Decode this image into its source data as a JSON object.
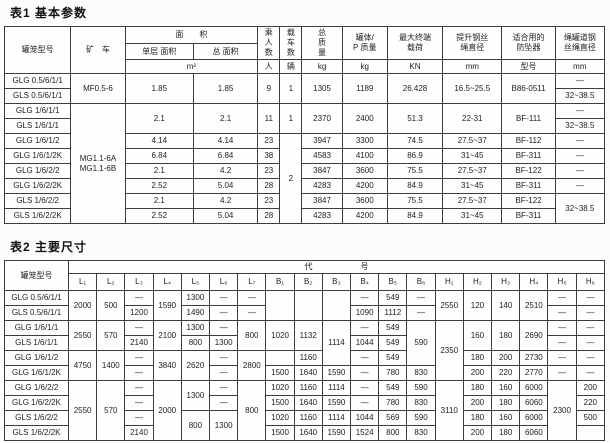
{
  "table1": {
    "title": "表1 基本参数",
    "header": [
      [
        {
          "t": "罐笼型号",
          "rs": 3
        },
        {
          "t": "矿　车",
          "rs": 3
        },
        {
          "t": "面　　积",
          "cs": 2
        },
        {
          "t": "乘\n人\n数",
          "rs": 2
        },
        {
          "t": "载\n车\n数",
          "rs": 2
        },
        {
          "t": "总\n质\n量",
          "rs": 2
        },
        {
          "t": "罐体/\nP 质量",
          "rs": 2
        },
        {
          "t": "最大终端\n载荷",
          "rs": 2
        },
        {
          "t": "提升钢丝\n绳直径",
          "rs": 2
        },
        {
          "t": "适合用的\n防坠器",
          "rs": 2
        },
        {
          "t": "绳罐道钢\n丝绳直径",
          "rs": 2
        }
      ],
      [
        {
          "t": "单层 面积"
        },
        {
          "t": "总 面积"
        }
      ],
      [
        {
          "t": "m²",
          "cs": 2
        },
        {
          "t": "人"
        },
        {
          "t": "辆"
        },
        {
          "t": "kg"
        },
        {
          "t": "kg"
        },
        {
          "t": "KN"
        },
        {
          "t": "mm"
        },
        {
          "t": "型号"
        },
        {
          "t": "mm"
        }
      ]
    ],
    "rows": [
      [
        "GLG 0.5/6/1/1",
        {
          "t": "MF0.5-6",
          "rs": 2
        },
        {
          "t": "1.85",
          "rs": 2
        },
        {
          "t": "1.85",
          "rs": 2
        },
        {
          "t": "9",
          "rs": 2
        },
        {
          "t": "1",
          "rs": 2
        },
        {
          "t": "1305",
          "rs": 2
        },
        {
          "t": "1189",
          "rs": 2
        },
        {
          "t": "26.428",
          "rs": 2
        },
        {
          "t": "16.5~25.5",
          "rs": 2
        },
        {
          "t": "B86-0511",
          "rs": 2
        },
        "—"
      ],
      [
        "GLS 0.5/6/1/1",
        "32~38.5"
      ],
      [
        "GLG 1/6/1/1",
        {
          "t": "MG1.1-6A\nMG1.1-6B",
          "rs": 8
        },
        {
          "t": "2.1",
          "rs": 2
        },
        {
          "t": "2.1",
          "rs": 2
        },
        {
          "t": "11",
          "rs": 2
        },
        {
          "t": "1",
          "rs": 2
        },
        {
          "t": "2370",
          "rs": 2
        },
        {
          "t": "2400",
          "rs": 2
        },
        {
          "t": "51.3",
          "rs": 2
        },
        {
          "t": "22-31",
          "rs": 2
        },
        {
          "t": "BF-111",
          "rs": 2
        },
        "—"
      ],
      [
        "GLS 1/6/1/1",
        "32~38.5"
      ],
      [
        "GLG 1/6/1/2",
        "4.14",
        "4.14",
        "23",
        {
          "t": "2",
          "rs": 6
        },
        "3947",
        "3300",
        "74.5",
        "27.5~37",
        "BF-112",
        "—"
      ],
      [
        "GLG 1/6/1/2K",
        "6.84",
        "6.84",
        "38",
        "4583",
        "4100",
        "86.9",
        "31~45",
        "BF-311",
        "—"
      ],
      [
        "GLG 1/6/2/2",
        "2.1",
        "4.2",
        "23",
        "3847",
        "3600",
        "75.5",
        "27.5~37",
        "BF-122",
        "—"
      ],
      [
        "GLG 1/6/2/2K",
        "2.52",
        "5.04",
        "28",
        "4283",
        "4200",
        "84.9",
        "31~45",
        "BF-311",
        "—"
      ],
      [
        "GLS 1/6/2/2",
        "2.1",
        "4.2",
        "23",
        "3847",
        "3600",
        "75.5",
        "27.5~37",
        "BF-122",
        {
          "t": "32~38.5",
          "rs": 2
        }
      ],
      [
        "GLS 1/6/2/2K",
        "2.52",
        "5.04",
        "28",
        "4283",
        "4200",
        "84.9",
        "31~45",
        "BF-311"
      ]
    ]
  },
  "table2": {
    "title": "表2 主要尺寸",
    "header": [
      [
        {
          "t": "罐笼型号",
          "rs": 2
        },
        {
          "t": "代　　　　　　号",
          "cs": 19
        }
      ],
      [
        {
          "t": "L₁"
        },
        {
          "t": "L₂"
        },
        {
          "t": "L₃"
        },
        {
          "t": "L₄"
        },
        {
          "t": "L₅"
        },
        {
          "t": "L₆"
        },
        {
          "t": "L₇"
        },
        {
          "t": "B₁"
        },
        {
          "t": "B₂"
        },
        {
          "t": "B₃"
        },
        {
          "t": "B₄"
        },
        {
          "t": "B₅"
        },
        {
          "t": "B₆"
        },
        {
          "t": "H₁"
        },
        {
          "t": "H₂"
        },
        {
          "t": "H₃"
        },
        {
          "t": "H₄"
        },
        {
          "t": "H₅"
        },
        {
          "t": "H₆"
        }
      ]
    ],
    "rows": [
      [
        "GLG 0.5/6/1/1",
        {
          "t": "2000",
          "rs": 2
        },
        {
          "t": "500",
          "rs": 2
        },
        "—",
        {
          "t": "1590",
          "rs": 2
        },
        "1300",
        "—",
        "—",
        {
          "t": "",
          "rs": 2
        },
        {
          "t": "",
          "rs": 2
        },
        {
          "t": "",
          "rs": 2
        },
        "—",
        "549",
        "—",
        {
          "t": "2550",
          "rs": 2
        },
        {
          "t": "120",
          "rs": 2
        },
        {
          "t": "140",
          "rs": 2
        },
        {
          "t": "2510",
          "rs": 2
        },
        "—",
        "—"
      ],
      [
        "GLS 0.5/6/1/1",
        "1200",
        "1490",
        "—",
        "—",
        "1090",
        "1112",
        "—",
        "—",
        "—"
      ],
      [
        "GLG 1/6/1/1",
        {
          "t": "2550",
          "rs": 2
        },
        {
          "t": "570",
          "rs": 2
        },
        "—",
        {
          "t": "2100",
          "rs": 2
        },
        "1300",
        "—",
        {
          "t": "800",
          "rs": 2
        },
        {
          "t": "1020",
          "rs": 2
        },
        {
          "t": "1132",
          "rs": 2
        },
        {
          "t": "1114",
          "rs": 3
        },
        "—",
        "549",
        {
          "t": "590",
          "rs": 3
        },
        {
          "t": "2350",
          "rs": 4
        },
        {
          "t": "160",
          "rs": 2
        },
        {
          "t": "180",
          "rs": 2
        },
        {
          "t": "2690",
          "rs": 2
        },
        "—",
        "—"
      ],
      [
        "GLS 1/6/1/1",
        "2140",
        "800",
        "1300",
        "1044",
        "549",
        "—",
        "—"
      ],
      [
        "GLG 1/6/1/2",
        {
          "t": "4750",
          "rs": 2
        },
        {
          "t": "1400",
          "rs": 2
        },
        "—",
        {
          "t": "3840",
          "rs": 2
        },
        {
          "t": "2620",
          "rs": 2
        },
        "—",
        {
          "t": "2800",
          "rs": 2
        },
        "",
        "1160",
        "—",
        "549",
        "180",
        "200",
        "2730",
        "—",
        "—"
      ],
      [
        "GLG 1/6/1/2K",
        "—",
        "—",
        "1500",
        "1640",
        "1590",
        "—",
        "780",
        "830",
        "200",
        "220",
        "2770",
        "—",
        "—"
      ],
      [
        "GLG 1/6/2/2",
        {
          "t": "2550",
          "rs": 4
        },
        {
          "t": "570",
          "rs": 4
        },
        "—",
        {
          "t": "2000",
          "rs": 4
        },
        {
          "t": "1300",
          "rs": 2
        },
        "—",
        {
          "t": "800",
          "rs": 4
        },
        "1020",
        "1160",
        "1114",
        "—",
        "549",
        "590",
        {
          "t": "3110",
          "rs": 4
        },
        "180",
        "160",
        "6000",
        {
          "t": "2300",
          "rs": 4
        },
        "200"
      ],
      [
        "GLG 1/6/2/2K",
        "—",
        "—",
        "1500",
        "1640",
        "1590",
        "—",
        "780",
        "830",
        "200",
        "180",
        "6060",
        "220"
      ],
      [
        "GLS 1/6/2/2",
        "—",
        {
          "t": "800",
          "rs": 2
        },
        {
          "t": "1300",
          "rs": 2
        },
        "1020",
        "1160",
        "1114",
        "1044",
        "569",
        "590",
        "180",
        "160",
        "6000",
        "500"
      ],
      [
        "GLS 1/6/2/2K",
        "2140",
        "1500",
        "1640",
        "1590",
        "1524",
        "800",
        "830",
        "200",
        "180",
        "6060",
        ""
      ]
    ]
  }
}
